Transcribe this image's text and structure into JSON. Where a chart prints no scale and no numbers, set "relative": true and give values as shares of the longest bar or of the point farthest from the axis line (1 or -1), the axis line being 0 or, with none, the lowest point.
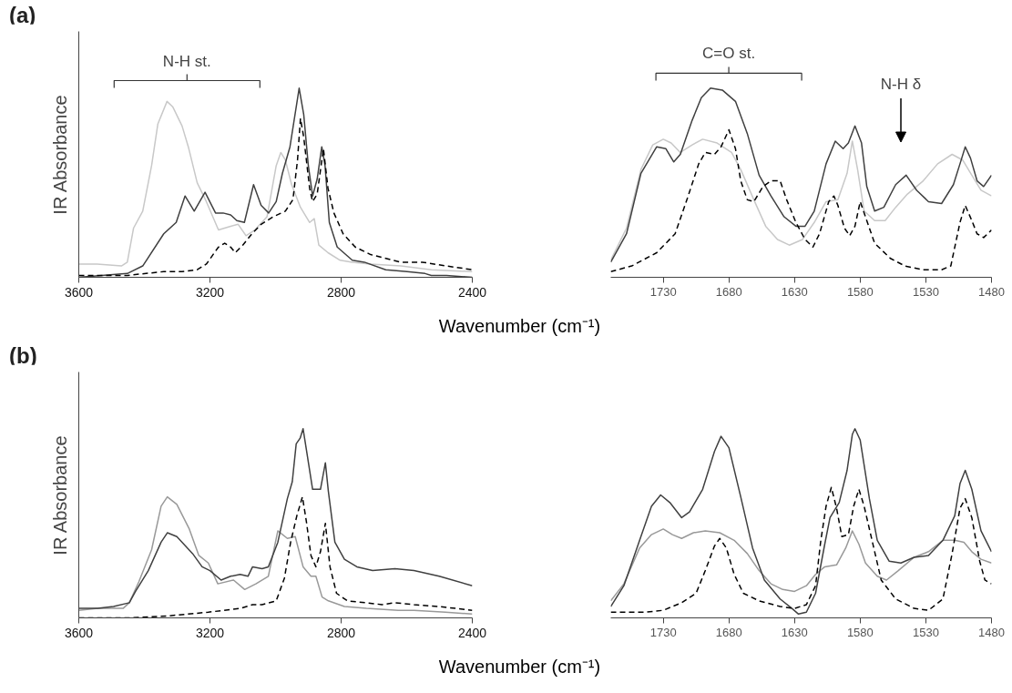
{
  "chart_data": [
    {
      "type": "line",
      "title": "(a)",
      "ylabel": "IR Absorbance",
      "xlabel": "Wavenumber (cm⁻¹)",
      "relative": true,
      "xlim": [
        3600,
        2400
      ],
      "xticks": [
        3600,
        3200,
        2800,
        2400
      ],
      "grid": false,
      "annotations": [
        "N-H st."
      ],
      "series": [
        {
          "color": "#c8c8c8",
          "line_style": "solid",
          "x": [
            3600,
            3544,
            3470,
            3452,
            3433,
            3405,
            3378,
            3359,
            3331,
            3313,
            3285,
            3266,
            3239,
            3211,
            3174,
            3137,
            3114,
            3090,
            3063,
            3026,
            2998,
            2984,
            2970,
            2951,
            2924,
            2896,
            2882,
            2868,
            2840,
            2803,
            2766,
            2710,
            2618,
            2525,
            2400
          ],
          "values": [
            0.07,
            0.07,
            0.06,
            0.08,
            0.26,
            0.35,
            0.59,
            0.81,
            0.93,
            0.9,
            0.8,
            0.69,
            0.5,
            0.4,
            0.25,
            0.27,
            0.28,
            0.22,
            0.25,
            0.32,
            0.59,
            0.66,
            0.62,
            0.49,
            0.37,
            0.29,
            0.31,
            0.17,
            0.13,
            0.09,
            0.08,
            0.07,
            0.06,
            0.04,
            0.03
          ]
        },
        {
          "color": "#404040",
          "line_style": "solid",
          "x": [
            3600,
            3452,
            3405,
            3341,
            3303,
            3276,
            3248,
            3215,
            3183,
            3160,
            3137,
            3118,
            3095,
            3067,
            3044,
            3021,
            2998,
            2979,
            2956,
            2928,
            2914,
            2900,
            2887,
            2873,
            2859,
            2849,
            2836,
            2812,
            2766,
            2729,
            2664,
            2599,
            2544,
            2525,
            2479,
            2400
          ],
          "values": [
            0,
            0.02,
            0.06,
            0.23,
            0.29,
            0.43,
            0.35,
            0.45,
            0.34,
            0.34,
            0.33,
            0.3,
            0.29,
            0.49,
            0.38,
            0.34,
            0.4,
            0.55,
            0.69,
            1.0,
            0.86,
            0.59,
            0.43,
            0.52,
            0.69,
            0.59,
            0.29,
            0.16,
            0.09,
            0.08,
            0.04,
            0.03,
            0.02,
            0.01,
            0.01,
            0
          ]
        },
        {
          "color": "#000000",
          "line_style": "dashed",
          "x": [
            3600,
            3452,
            3341,
            3285,
            3239,
            3211,
            3174,
            3155,
            3137,
            3123,
            3100,
            3072,
            3044,
            3007,
            2970,
            2947,
            2933,
            2924,
            2914,
            2896,
            2887,
            2873,
            2854,
            2840,
            2822,
            2794,
            2757,
            2710,
            2618,
            2553,
            2479,
            2400
          ],
          "values": [
            0.01,
            0.01,
            0.03,
            0.03,
            0.04,
            0.07,
            0.16,
            0.18,
            0.16,
            0.13,
            0.17,
            0.23,
            0.28,
            0.32,
            0.35,
            0.41,
            0.62,
            0.84,
            0.74,
            0.47,
            0.4,
            0.44,
            0.68,
            0.47,
            0.34,
            0.23,
            0.16,
            0.12,
            0.08,
            0.08,
            0.06,
            0.04
          ]
        }
      ]
    },
    {
      "type": "line",
      "relative": true,
      "xlim": [
        1770,
        1480
      ],
      "xticks": [
        1730,
        1680,
        1630,
        1580,
        1530,
        1480
      ],
      "grid": false,
      "annotations": [
        "C=O st.",
        "N-H δ"
      ],
      "series": [
        {
          "color": "#c8c8c8",
          "line_style": "solid",
          "x": [
            1770,
            1758,
            1747,
            1738,
            1730,
            1724,
            1717,
            1708,
            1700,
            1689,
            1678,
            1671,
            1661,
            1652,
            1643,
            1634,
            1624,
            1615,
            1606,
            1597,
            1590,
            1586,
            1582,
            1577,
            1569,
            1561,
            1553,
            1544,
            1532,
            1521,
            1510,
            1502,
            1495,
            1488,
            1480
          ],
          "values": [
            0.09,
            0.26,
            0.57,
            0.7,
            0.73,
            0.71,
            0.66,
            0.7,
            0.73,
            0.71,
            0.66,
            0.57,
            0.41,
            0.27,
            0.2,
            0.17,
            0.2,
            0.29,
            0.4,
            0.41,
            0.55,
            0.72,
            0.57,
            0.35,
            0.3,
            0.3,
            0.37,
            0.44,
            0.51,
            0.6,
            0.65,
            0.62,
            0.54,
            0.46,
            0.43
          ]
        },
        {
          "color": "#404040",
          "line_style": "solid",
          "x": [
            1770,
            1758,
            1747,
            1735,
            1728,
            1722,
            1717,
            1708,
            1701,
            1694,
            1685,
            1675,
            1666,
            1657,
            1648,
            1638,
            1629,
            1622,
            1615,
            1606,
            1599,
            1593,
            1589,
            1584,
            1579,
            1575,
            1569,
            1562,
            1553,
            1545,
            1537,
            1528,
            1518,
            1509,
            1504,
            1500,
            1496,
            1491,
            1486,
            1480
          ],
          "values": [
            0.08,
            0.23,
            0.55,
            0.69,
            0.68,
            0.61,
            0.65,
            0.83,
            0.95,
            1.0,
            0.99,
            0.93,
            0.76,
            0.54,
            0.43,
            0.32,
            0.27,
            0.27,
            0.35,
            0.6,
            0.72,
            0.68,
            0.71,
            0.8,
            0.71,
            0.48,
            0.35,
            0.37,
            0.49,
            0.54,
            0.46,
            0.4,
            0.39,
            0.49,
            0.6,
            0.69,
            0.63,
            0.51,
            0.48,
            0.54
          ]
        },
        {
          "color": "#000000",
          "line_style": "dashed",
          "x": [
            1770,
            1754,
            1735,
            1721,
            1712,
            1703,
            1698,
            1691,
            1686,
            1680,
            1675,
            1671,
            1666,
            1661,
            1654,
            1648,
            1641,
            1636,
            1629,
            1622,
            1616,
            1611,
            1604,
            1600,
            1597,
            1592,
            1588,
            1584,
            1580,
            1576,
            1569,
            1557,
            1546,
            1532,
            1518,
            1511,
            1504,
            1500,
            1495,
            1491,
            1486,
            1480
          ],
          "values": [
            0.03,
            0.06,
            0.13,
            0.23,
            0.41,
            0.6,
            0.66,
            0.65,
            0.69,
            0.78,
            0.68,
            0.51,
            0.41,
            0.4,
            0.48,
            0.51,
            0.51,
            0.41,
            0.29,
            0.2,
            0.16,
            0.23,
            0.4,
            0.43,
            0.38,
            0.26,
            0.22,
            0.27,
            0.4,
            0.32,
            0.18,
            0.1,
            0.06,
            0.04,
            0.04,
            0.06,
            0.29,
            0.38,
            0.3,
            0.23,
            0.21,
            0.25
          ]
        }
      ]
    },
    {
      "type": "line",
      "title": "(b)",
      "ylabel": "IR Absorbance",
      "xlabel": "Wavenumber (cm⁻¹)",
      "relative": true,
      "xlim": [
        3600,
        2400
      ],
      "xticks": [
        3600,
        3200,
        2800,
        2400
      ],
      "grid": false,
      "series": [
        {
          "color": "#999999",
          "line_style": "solid",
          "x": [
            3600,
            3542,
            3465,
            3446,
            3417,
            3378,
            3349,
            3330,
            3301,
            3263,
            3234,
            3205,
            3176,
            3128,
            3094,
            3060,
            3022,
            2993,
            2964,
            2940,
            2916,
            2892,
            2877,
            2858,
            2839,
            2790,
            2723,
            2626,
            2578,
            2482,
            2400
          ],
          "values": [
            0.04,
            0.05,
            0.05,
            0.08,
            0.19,
            0.36,
            0.59,
            0.64,
            0.6,
            0.47,
            0.33,
            0.29,
            0.18,
            0.2,
            0.15,
            0.18,
            0.22,
            0.46,
            0.42,
            0.43,
            0.27,
            0.22,
            0.22,
            0.11,
            0.09,
            0.06,
            0.05,
            0.04,
            0.04,
            0.03,
            0.02
          ]
        },
        {
          "color": "#404040",
          "line_style": "solid",
          "x": [
            3600,
            3542,
            3494,
            3446,
            3427,
            3388,
            3349,
            3330,
            3301,
            3253,
            3224,
            3200,
            3166,
            3137,
            3108,
            3084,
            3070,
            3041,
            3022,
            2993,
            2964,
            2949,
            2937,
            2925,
            2916,
            2906,
            2887,
            2863,
            2848,
            2839,
            2819,
            2790,
            2752,
            2704,
            2636,
            2578,
            2501,
            2400
          ],
          "values": [
            0.05,
            0.05,
            0.06,
            0.08,
            0.14,
            0.25,
            0.4,
            0.45,
            0.43,
            0.34,
            0.27,
            0.25,
            0.2,
            0.22,
            0.23,
            0.22,
            0.27,
            0.26,
            0.27,
            0.4,
            0.63,
            0.72,
            0.92,
            0.95,
            1.0,
            0.89,
            0.68,
            0.68,
            0.82,
            0.67,
            0.4,
            0.31,
            0.27,
            0.25,
            0.26,
            0.25,
            0.22,
            0.17
          ]
        },
        {
          "color": "#000000",
          "line_style": "dashed",
          "x": [
            3600,
            3446,
            3330,
            3205,
            3108,
            3070,
            3041,
            2998,
            2973,
            2954,
            2935,
            2918,
            2906,
            2892,
            2877,
            2863,
            2848,
            2834,
            2814,
            2781,
            2723,
            2675,
            2636,
            2578,
            2501,
            2400
          ],
          "values": [
            0.0,
            0.0,
            0.01,
            0.03,
            0.05,
            0.07,
            0.07,
            0.09,
            0.21,
            0.4,
            0.54,
            0.64,
            0.51,
            0.33,
            0.27,
            0.35,
            0.5,
            0.27,
            0.13,
            0.09,
            0.08,
            0.07,
            0.08,
            0.07,
            0.06,
            0.04
          ]
        }
      ]
    },
    {
      "type": "line",
      "relative": true,
      "xlim": [
        1770,
        1480
      ],
      "xticks": [
        1730,
        1680,
        1630,
        1580,
        1530,
        1480
      ],
      "grid": false,
      "series": [
        {
          "color": "#999999",
          "line_style": "solid",
          "x": [
            1770,
            1760,
            1748,
            1739,
            1730,
            1723,
            1716,
            1707,
            1698,
            1687,
            1676,
            1666,
            1657,
            1648,
            1639,
            1630,
            1621,
            1614,
            1607,
            1598,
            1591,
            1586,
            1581,
            1576,
            1567,
            1560,
            1551,
            1539,
            1528,
            1517,
            1508,
            1501,
            1495,
            1488,
            1480
          ],
          "values": [
            0.09,
            0.18,
            0.37,
            0.44,
            0.47,
            0.44,
            0.42,
            0.45,
            0.46,
            0.45,
            0.41,
            0.34,
            0.25,
            0.18,
            0.15,
            0.14,
            0.17,
            0.23,
            0.27,
            0.28,
            0.37,
            0.46,
            0.39,
            0.29,
            0.22,
            0.2,
            0.25,
            0.32,
            0.35,
            0.41,
            0.41,
            0.4,
            0.35,
            0.31,
            0.29
          ]
        },
        {
          "color": "#404040",
          "line_style": "solid",
          "x": [
            1770,
            1760,
            1748,
            1739,
            1732,
            1725,
            1716,
            1710,
            1700,
            1691,
            1686,
            1680,
            1671,
            1662,
            1653,
            1641,
            1632,
            1627,
            1621,
            1614,
            1607,
            1603,
            1596,
            1590,
            1586,
            1584,
            1580,
            1573,
            1567,
            1558,
            1549,
            1539,
            1528,
            1517,
            1508,
            1504,
            1500,
            1495,
            1488,
            1480
          ],
          "values": [
            0.06,
            0.17,
            0.41,
            0.59,
            0.65,
            0.61,
            0.53,
            0.56,
            0.68,
            0.88,
            0.96,
            0.9,
            0.64,
            0.37,
            0.2,
            0.1,
            0.05,
            0.02,
            0.03,
            0.13,
            0.39,
            0.53,
            0.61,
            0.78,
            0.97,
            1.0,
            0.94,
            0.63,
            0.41,
            0.3,
            0.29,
            0.32,
            0.33,
            0.41,
            0.54,
            0.71,
            0.78,
            0.68,
            0.46,
            0.35
          ]
        },
        {
          "color": "#000000",
          "line_style": "dashed",
          "x": [
            1770,
            1744,
            1730,
            1716,
            1705,
            1698,
            1691,
            1687,
            1682,
            1676,
            1669,
            1657,
            1641,
            1630,
            1621,
            1614,
            1610,
            1606,
            1602,
            1598,
            1594,
            1589,
            1585,
            1581,
            1577,
            1571,
            1564,
            1553,
            1539,
            1528,
            1517,
            1510,
            1504,
            1500,
            1495,
            1489,
            1485,
            1480
          ],
          "values": [
            0.03,
            0.03,
            0.04,
            0.08,
            0.13,
            0.25,
            0.38,
            0.42,
            0.37,
            0.23,
            0.13,
            0.09,
            0.06,
            0.05,
            0.07,
            0.17,
            0.41,
            0.59,
            0.69,
            0.58,
            0.43,
            0.44,
            0.59,
            0.68,
            0.59,
            0.41,
            0.2,
            0.1,
            0.05,
            0.04,
            0.1,
            0.34,
            0.58,
            0.63,
            0.53,
            0.3,
            0.2,
            0.18
          ]
        }
      ]
    }
  ]
}
